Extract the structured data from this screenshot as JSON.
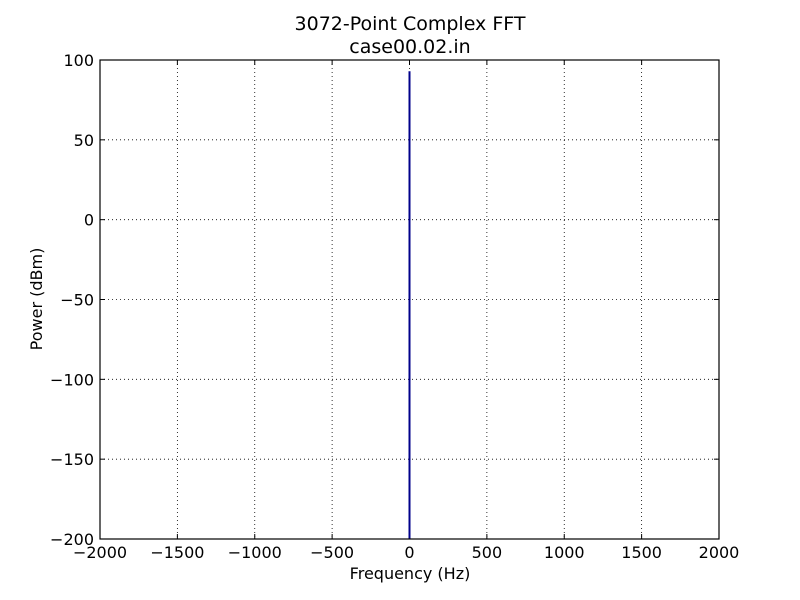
{
  "chart_data": {
    "type": "line",
    "title": "3072-Point Complex FFT",
    "subtitle": "case00.02.in",
    "xlabel": "Frequency (Hz)",
    "ylabel": "Power (dBm)",
    "xlim": [
      -2000,
      2000
    ],
    "ylim": [
      -200,
      100
    ],
    "xticks": [
      -2000,
      -1500,
      -1000,
      -500,
      0,
      500,
      1000,
      1500,
      2000
    ],
    "yticks": [
      -200,
      -150,
      -100,
      -50,
      0,
      50,
      100
    ],
    "xtick_labels": [
      "−2000",
      "−1500",
      "−1000",
      "−500",
      "0",
      "500",
      "1000",
      "1500",
      "2000"
    ],
    "ytick_labels": [
      "−200",
      "−150",
      "−100",
      "−50",
      "0",
      "50",
      "100"
    ],
    "grid": true,
    "series": [
      {
        "color": "#00008b",
        "x": [
          0,
          0
        ],
        "y": [
          -200,
          93
        ]
      }
    ]
  }
}
